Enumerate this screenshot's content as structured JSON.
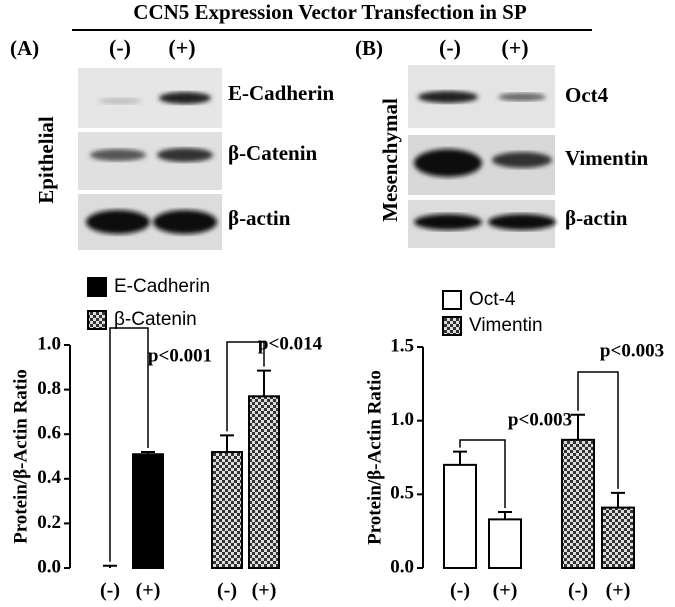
{
  "figure": {
    "title": "CCN5 Expression Vector Transfection in SP",
    "panel_a": {
      "label": "(A)",
      "lanes": [
        "(-)",
        "(+)"
      ],
      "side_label": "Epithelial",
      "blots": [
        "E-Cadherin",
        "β-Catenin",
        "β-actin"
      ]
    },
    "panel_b": {
      "label": "(B)",
      "lanes": [
        "(-)",
        "(+)"
      ],
      "side_label": "Mesenchymal",
      "blots": [
        "Oct4",
        "Vimentin",
        "β-actin"
      ]
    }
  },
  "chart_data": [
    {
      "type": "bar",
      "ylabel": "Protein/β-Actin Ratio",
      "categories": [
        "(-)",
        "(+)",
        "(-)",
        "(+)"
      ],
      "series": [
        {
          "name": "E-Cadherin",
          "color": "#000000",
          "pattern": "solid",
          "values": [
            0.0,
            0.51,
            null,
            null
          ],
          "errors": [
            0.01,
            0.01,
            null,
            null
          ]
        },
        {
          "name": "β-Catenin",
          "color": "#555555",
          "pattern": "checker",
          "values": [
            null,
            null,
            0.52,
            0.77
          ],
          "errors": [
            null,
            null,
            0.075,
            0.115
          ]
        }
      ],
      "ylim": [
        0,
        1.0
      ],
      "yticks": [
        {
          "value": 0,
          "label": "0.0"
        },
        0.2,
        0.4,
        0.6,
        0.8,
        {
          "value": 1.0,
          "label": "1.0"
        }
      ],
      "annotations": [
        "p<0.001",
        "p<0.014"
      ]
    },
    {
      "type": "bar",
      "ylabel": "Protein/β-Actin Ratio",
      "categories": [
        "(-)",
        "(+)",
        "(-)",
        "(+)"
      ],
      "series": [
        {
          "name": "Oct-4",
          "color": "#ffffff",
          "pattern": "solid",
          "values": [
            0.7,
            0.33,
            null,
            null
          ],
          "errors": [
            0.09,
            0.05,
            null,
            null
          ]
        },
        {
          "name": "Vimentin",
          "color": "#555555",
          "pattern": "checker",
          "values": [
            null,
            null,
            0.87,
            0.41
          ],
          "errors": [
            null,
            null,
            0.17,
            0.1
          ]
        }
      ],
      "ylim": [
        0,
        1.5
      ],
      "yticks": [
        {
          "value": 0,
          "label": "0.0"
        },
        0.5,
        {
          "value": 1.0,
          "label": "1.0"
        },
        1.5
      ],
      "annotations": [
        "p<0.003",
        "p<0.003"
      ]
    }
  ]
}
